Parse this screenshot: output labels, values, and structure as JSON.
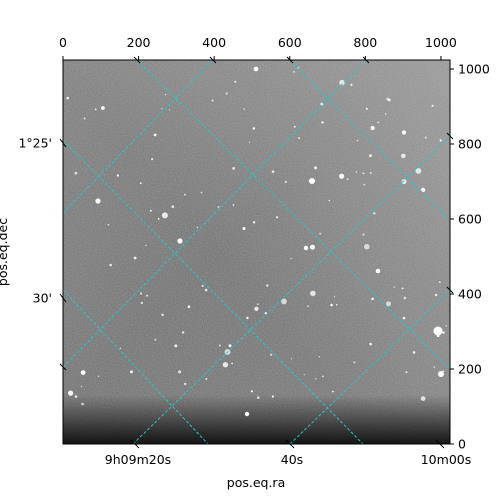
{
  "chart_data": {
    "type": "sky-image",
    "xlabel": "pos.eq.ra",
    "ylabel": "pos.eq.dec",
    "pixel_axes": {
      "top_x_ticks": [
        "0",
        "200",
        "400",
        "600",
        "800",
        "1000"
      ],
      "right_y_ticks": [
        "0",
        "200",
        "400",
        "600",
        "800",
        "1000"
      ],
      "xlim": [
        0,
        1024
      ],
      "ylim": [
        0,
        1024
      ]
    },
    "world_axes": {
      "ra_ticks": [
        "9h09m20s",
        "40s",
        "10m00s"
      ],
      "dec_ticks": [
        "1°25'",
        "30'"
      ]
    },
    "grid": true,
    "grid_color": "#22c8c8",
    "colors": {
      "background": "#ffffff",
      "frame": "#000000"
    }
  }
}
